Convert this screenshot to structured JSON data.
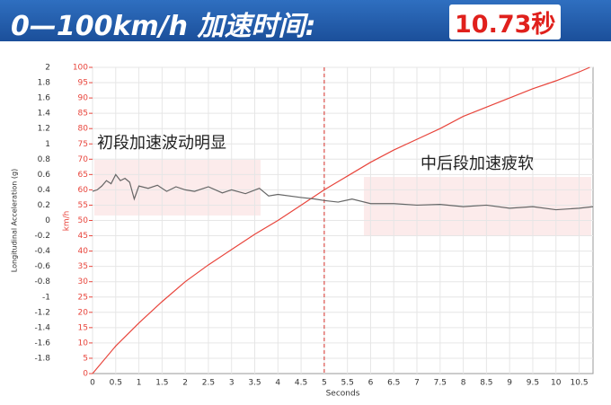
{
  "header": {
    "title": "0—100km/h 加速时间:",
    "value": "10.73秒"
  },
  "chart_data": {
    "type": "line",
    "xlabel": "Seconds",
    "ylabel": "Longitudinal Acceleration (g)",
    "y2label": "km/h",
    "xlim": [
      0,
      10.8
    ],
    "xticks": [
      0,
      0.5,
      1,
      1.5,
      2,
      2.5,
      3,
      3.5,
      4,
      4.5,
      5,
      5.5,
      6,
      6.5,
      7,
      7.5,
      8,
      8.5,
      9,
      9.5,
      10,
      10.5
    ],
    "ylim": [
      -2,
      2
    ],
    "yticks": [
      -1.8,
      -1.6,
      -1.4,
      -1.2,
      -1,
      -0.8,
      -0.6,
      -0.4,
      -0.2,
      0,
      0.2,
      0.4,
      0.6,
      0.8,
      1,
      1.2,
      1.4,
      1.6,
      1.8,
      2
    ],
    "y2lim": [
      0,
      100
    ],
    "y2ticks": [
      0,
      5,
      10,
      15,
      20,
      25,
      30,
      35,
      40,
      45,
      50,
      55,
      60,
      65,
      70,
      75,
      80,
      85,
      90,
      95,
      100
    ],
    "grid": true,
    "vline": 5,
    "vline_color": "#d9302a",
    "annotations": [
      "初段加速波动明显",
      "中后段加速疲软"
    ],
    "series": [
      {
        "axis": "y2",
        "color": "#e8453c",
        "x": [
          0,
          0.5,
          1,
          1.5,
          2,
          2.5,
          3,
          3.5,
          4,
          4.5,
          5,
          5.5,
          6,
          6.5,
          7,
          7.5,
          8,
          8.5,
          9,
          9.5,
          10,
          10.5,
          10.73
        ],
        "values": [
          0,
          9,
          16.5,
          23.5,
          30,
          35.5,
          40.5,
          45.5,
          50,
          55,
          60,
          64.5,
          69,
          73,
          76.5,
          80,
          84,
          87,
          90,
          93,
          95.6,
          98.5,
          100
        ]
      },
      {
        "axis": "y",
        "color": "#666666",
        "x": [
          0,
          0.1,
          0.2,
          0.3,
          0.4,
          0.5,
          0.6,
          0.7,
          0.8,
          0.9,
          1,
          1.2,
          1.4,
          1.6,
          1.8,
          2,
          2.2,
          2.5,
          2.8,
          3,
          3.3,
          3.6,
          3.8,
          4,
          4.5,
          4.8,
          5,
          5.3,
          5.6,
          6,
          6.5,
          7,
          7.5,
          8,
          8.5,
          9,
          9.5,
          10,
          10.5,
          10.8
        ],
        "values": [
          0.38,
          0.4,
          0.45,
          0.52,
          0.48,
          0.6,
          0.52,
          0.55,
          0.5,
          0.28,
          0.45,
          0.42,
          0.46,
          0.38,
          0.44,
          0.4,
          0.38,
          0.44,
          0.36,
          0.4,
          0.35,
          0.42,
          0.32,
          0.34,
          0.3,
          0.28,
          0.26,
          0.24,
          0.28,
          0.22,
          0.22,
          0.2,
          0.21,
          0.18,
          0.2,
          0.16,
          0.18,
          0.14,
          0.16,
          0.18
        ]
      }
    ]
  }
}
